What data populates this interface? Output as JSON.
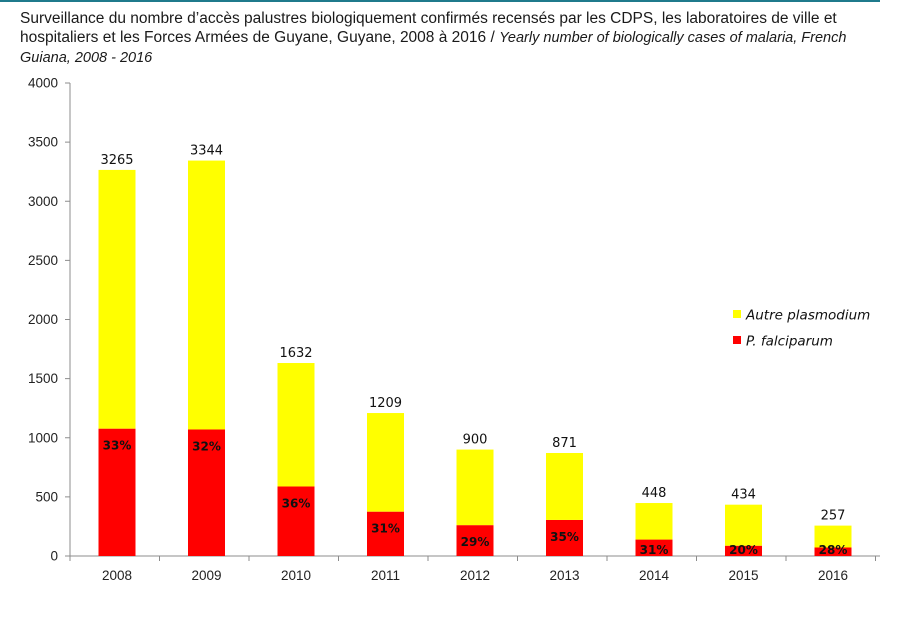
{
  "header": {
    "title_fr": "Surveillance du nombre d’accès palustres biologiquement confirmés recensés par les CDPS, les laboratoires de ville et hospitaliers et les Forces Armées de Guyane, Guyane, 2008 à 2016 /",
    "title_en": "Yearly number of biologically cases of malaria, French Guiana, 2008 - 2016"
  },
  "colors": {
    "falciparum": "#ff0000",
    "autre": "#ffff00"
  },
  "chart_data": {
    "type": "bar",
    "stacked": true,
    "categories": [
      "2008",
      "2009",
      "2010",
      "2011",
      "2012",
      "2013",
      "2014",
      "2015",
      "2016"
    ],
    "series": [
      {
        "name": "P. falciparum",
        "values": [
          1077,
          1070,
          588,
          375,
          261,
          305,
          139,
          87,
          72
        ]
      },
      {
        "name": "Autre plasmodium",
        "values": [
          2188,
          2274,
          1044,
          834,
          639,
          566,
          309,
          347,
          185
        ]
      }
    ],
    "totals": [
      3265,
      3344,
      1632,
      1209,
      900,
      871,
      448,
      434,
      257
    ],
    "total_labels": [
      "3265",
      "3344",
      "1632",
      "1209",
      "900",
      "871",
      "448",
      "434",
      "257"
    ],
    "falciparum_pct_labels": [
      "33%",
      "32%",
      "36%",
      "31%",
      "29%",
      "35%",
      "31%",
      "20%",
      "28%"
    ],
    "yticks": [
      "0",
      "500",
      "1000",
      "1500",
      "2000",
      "2500",
      "3000",
      "3500",
      "4000"
    ],
    "ylim": [
      0,
      4000
    ],
    "legend": [
      "Autre plasmodium",
      "P. falciparum"
    ],
    "legend_position": "right",
    "grid": false
  }
}
